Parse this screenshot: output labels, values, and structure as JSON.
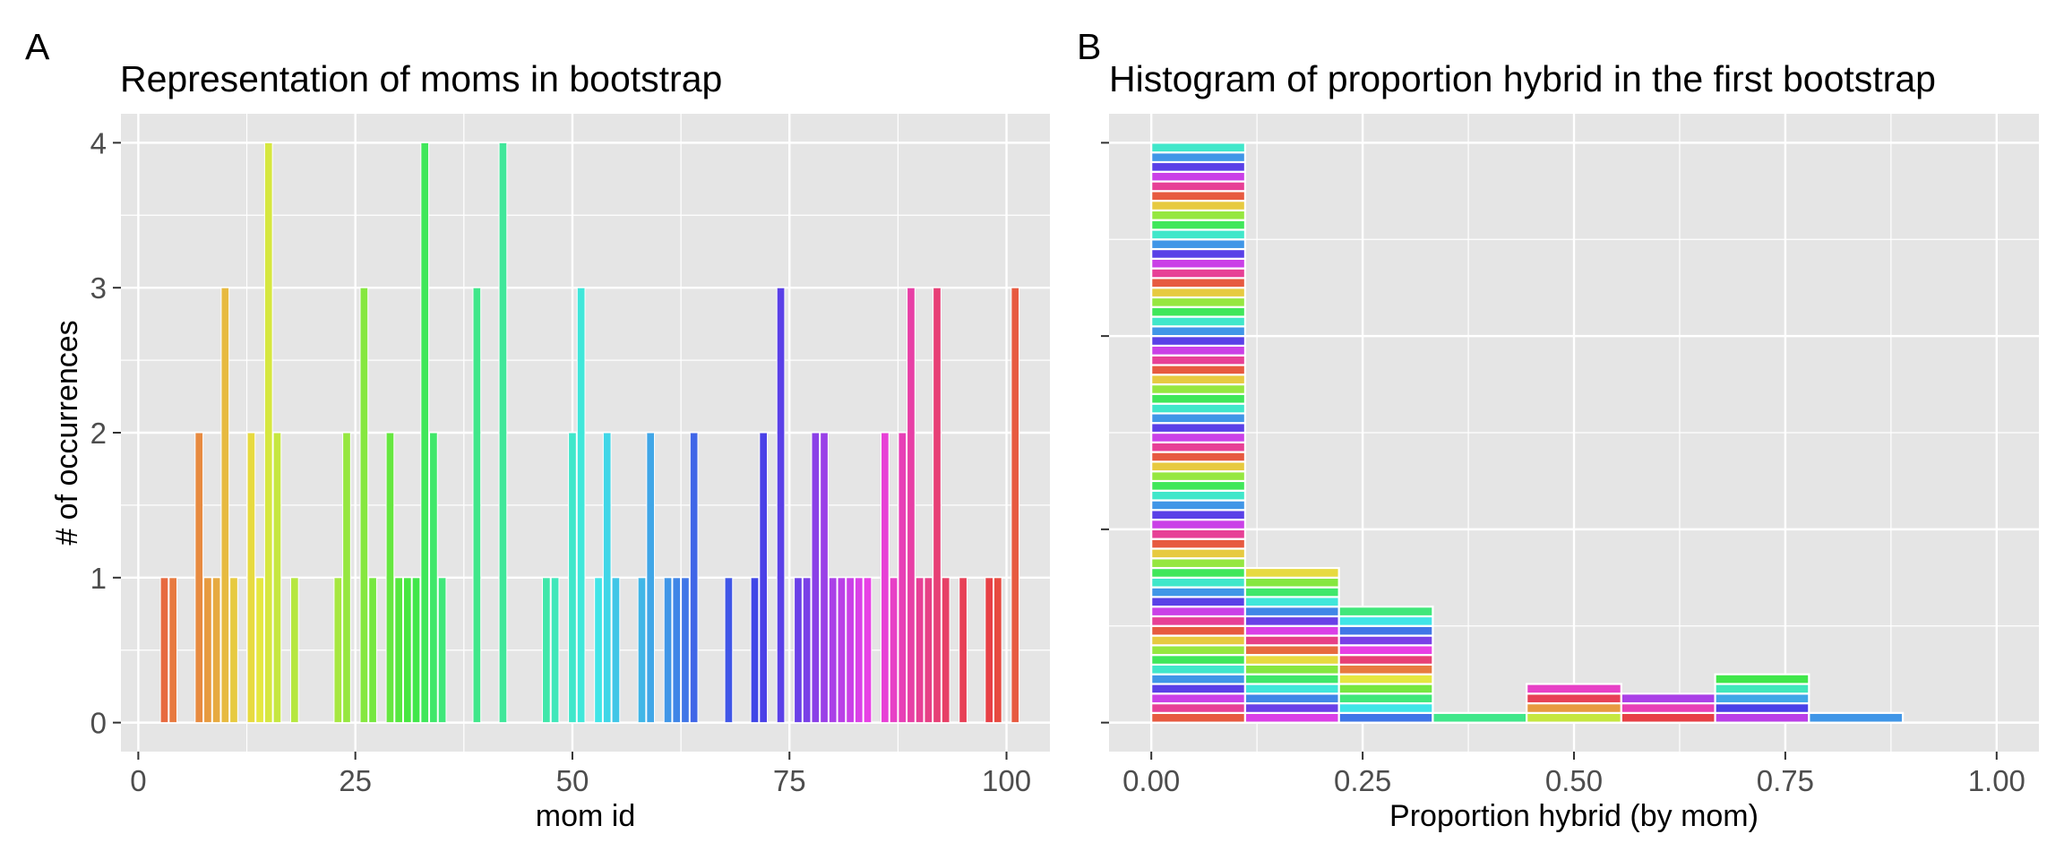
{
  "colors": {
    "panel_bg": "#E5E5E5",
    "grid": "#FFFFFF",
    "bar_outline": "#FFFFFF",
    "tick_text": "#4D4D4D"
  },
  "chart_data": [
    {
      "panel": "A",
      "type": "bar",
      "title": "Representation of moms in bootstrap",
      "xlabel": "mom id",
      "ylabel": "# of occurrences",
      "xlim": [
        -2,
        105
      ],
      "ylim": [
        -0.2,
        4.2
      ],
      "x_ticks": [
        0,
        25,
        50,
        75,
        100
      ],
      "x_tick_labels": [
        "0",
        "25",
        "50",
        "75",
        "100"
      ],
      "y_ticks": [
        0,
        1,
        2,
        3,
        4
      ],
      "y_tick_labels": [
        "0",
        "1",
        "2",
        "3",
        "4"
      ],
      "bars": [
        {
          "x": 3,
          "y": 1
        },
        {
          "x": 4,
          "y": 1
        },
        {
          "x": 7,
          "y": 2
        },
        {
          "x": 8,
          "y": 1
        },
        {
          "x": 9,
          "y": 1
        },
        {
          "x": 10,
          "y": 3
        },
        {
          "x": 11,
          "y": 1
        },
        {
          "x": 13,
          "y": 2
        },
        {
          "x": 14,
          "y": 1
        },
        {
          "x": 15,
          "y": 4
        },
        {
          "x": 16,
          "y": 2
        },
        {
          "x": 18,
          "y": 1
        },
        {
          "x": 23,
          "y": 1
        },
        {
          "x": 24,
          "y": 2
        },
        {
          "x": 26,
          "y": 3
        },
        {
          "x": 27,
          "y": 1
        },
        {
          "x": 29,
          "y": 2
        },
        {
          "x": 30,
          "y": 1
        },
        {
          "x": 31,
          "y": 1
        },
        {
          "x": 32,
          "y": 1
        },
        {
          "x": 33,
          "y": 4
        },
        {
          "x": 34,
          "y": 2
        },
        {
          "x": 35,
          "y": 1
        },
        {
          "x": 39,
          "y": 3
        },
        {
          "x": 42,
          "y": 4
        },
        {
          "x": 47,
          "y": 1
        },
        {
          "x": 48,
          "y": 1
        },
        {
          "x": 50,
          "y": 2
        },
        {
          "x": 51,
          "y": 3
        },
        {
          "x": 53,
          "y": 1
        },
        {
          "x": 54,
          "y": 2
        },
        {
          "x": 55,
          "y": 1
        },
        {
          "x": 58,
          "y": 1
        },
        {
          "x": 59,
          "y": 2
        },
        {
          "x": 61,
          "y": 1
        },
        {
          "x": 62,
          "y": 1
        },
        {
          "x": 63,
          "y": 1
        },
        {
          "x": 64,
          "y": 2
        },
        {
          "x": 68,
          "y": 1
        },
        {
          "x": 71,
          "y": 1
        },
        {
          "x": 72,
          "y": 2
        },
        {
          "x": 74,
          "y": 3
        },
        {
          "x": 76,
          "y": 1
        },
        {
          "x": 77,
          "y": 1
        },
        {
          "x": 78,
          "y": 2
        },
        {
          "x": 79,
          "y": 2
        },
        {
          "x": 80,
          "y": 1
        },
        {
          "x": 81,
          "y": 1
        },
        {
          "x": 82,
          "y": 1
        },
        {
          "x": 83,
          "y": 1
        },
        {
          "x": 84,
          "y": 1
        },
        {
          "x": 86,
          "y": 2
        },
        {
          "x": 87,
          "y": 1
        },
        {
          "x": 88,
          "y": 2
        },
        {
          "x": 89,
          "y": 3
        },
        {
          "x": 90,
          "y": 1
        },
        {
          "x": 91,
          "y": 1
        },
        {
          "x": 92,
          "y": 3
        },
        {
          "x": 93,
          "y": 1
        },
        {
          "x": 95,
          "y": 1
        },
        {
          "x": 98,
          "y": 1
        },
        {
          "x": 99,
          "y": 1
        },
        {
          "x": 101,
          "y": 3
        }
      ]
    },
    {
      "panel": "B",
      "type": "bar",
      "title": "Histogram of proportion hybrid in the first bootstrap",
      "xlabel": "Proportion hybrid (by mom)",
      "ylabel": "",
      "xlim": [
        -0.05,
        1.05
      ],
      "ylim": [
        -3,
        63
      ],
      "x_ticks": [
        0,
        0.25,
        0.5,
        0.75,
        1.0
      ],
      "x_tick_labels": [
        "0.00",
        "0.25",
        "0.50",
        "0.75",
        "1.00"
      ],
      "y_ticks": [
        0,
        20,
        40,
        60
      ],
      "y_tick_labels": [
        "",
        "",
        "",
        ""
      ],
      "bins": [
        {
          "x0": 0.0,
          "x1": 0.111,
          "count": 60,
          "note": "stacked segments, one per mom"
        },
        {
          "x0": 0.111,
          "x1": 0.222,
          "count": 16
        },
        {
          "x0": 0.222,
          "x1": 0.333,
          "count": 12
        },
        {
          "x0": 0.333,
          "x1": 0.444,
          "count": 1
        },
        {
          "x0": 0.444,
          "x1": 0.556,
          "count": 4
        },
        {
          "x0": 0.556,
          "x1": 0.667,
          "count": 3
        },
        {
          "x0": 0.667,
          "x1": 0.778,
          "count": 5
        },
        {
          "x0": 0.778,
          "x1": 0.889,
          "count": 1
        },
        {
          "x0": 0.889,
          "x1": 1.0,
          "count": 0
        }
      ]
    }
  ]
}
